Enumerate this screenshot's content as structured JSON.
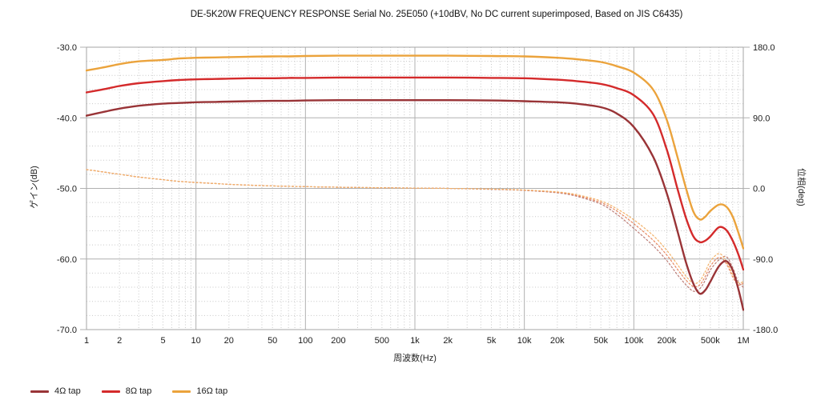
{
  "chart_data": {
    "type": "line",
    "title": "DE-5K20W FREQUENCY RESPONSE Serial No. 25E050 (+10dBV,  No DC current superimposed,  Based on JIS C6435)",
    "xlabel": "周波数(Hz)",
    "ylabel_left": "ゲイン(dB)",
    "ylabel_right": "位相(deg)",
    "x_scale": "log",
    "xlim": [
      1,
      1000000
    ],
    "ylim_left": [
      -70,
      -30
    ],
    "ylim_right": [
      -180,
      180
    ],
    "grid": {
      "major_db_step": 10,
      "minor_db_step": 2,
      "log_minor_divisions": true
    },
    "x_ticks": [
      {
        "label": "1",
        "value": 1
      },
      {
        "label": "2",
        "value": 2
      },
      {
        "label": "5",
        "value": 5
      },
      {
        "label": "10",
        "value": 10
      },
      {
        "label": "20",
        "value": 20
      },
      {
        "label": "50",
        "value": 50
      },
      {
        "label": "100",
        "value": 100
      },
      {
        "label": "200",
        "value": 200
      },
      {
        "label": "500",
        "value": 500
      },
      {
        "label": "1k",
        "value": 1000
      },
      {
        "label": "2k",
        "value": 2000
      },
      {
        "label": "5k",
        "value": 5000
      },
      {
        "label": "10k",
        "value": 10000
      },
      {
        "label": "20k",
        "value": 20000
      },
      {
        "label": "50k",
        "value": 50000
      },
      {
        "label": "100k",
        "value": 100000
      },
      {
        "label": "200k",
        "value": 200000
      },
      {
        "label": "500k",
        "value": 500000
      },
      {
        "label": "1M",
        "value": 1000000
      }
    ],
    "y_ticks_left": [
      {
        "label": "-30.0",
        "value": -30
      },
      {
        "label": "-40.0",
        "value": -40
      },
      {
        "label": "-50.0",
        "value": -50
      },
      {
        "label": "-60.0",
        "value": -60
      },
      {
        "label": "-70.0",
        "value": -70
      }
    ],
    "y_ticks_right": [
      {
        "label": "180.0",
        "value": 180
      },
      {
        "label": "90.0",
        "value": 90
      },
      {
        "label": "0.0",
        "value": 0
      },
      {
        "label": "-90.0",
        "value": -90
      },
      {
        "label": "-180.0",
        "value": -180
      }
    ],
    "frequencies": [
      1,
      1.5,
      2,
      3,
      5,
      7,
      10,
      15,
      20,
      30,
      50,
      70,
      100,
      200,
      500,
      1000,
      2000,
      5000,
      10000,
      20000,
      30000,
      50000,
      70000,
      100000,
      150000,
      200000,
      250000,
      300000,
      350000,
      400000,
      450000,
      500000,
      600000,
      700000,
      800000,
      900000,
      1000000
    ],
    "series": [
      {
        "name": "4Ω tap phase",
        "axis": "right",
        "style": "dashed",
        "color": "#bd7e78",
        "values": [
          24,
          20.5,
          18,
          14.5,
          11,
          9,
          7.5,
          6.2,
          5.2,
          4.2,
          3.2,
          2.7,
          2.2,
          1.5,
          0.8,
          0.4,
          0,
          -1.2,
          -2.6,
          -5.6,
          -10,
          -20,
          -33,
          -51,
          -73,
          -92,
          -110,
          -123,
          -131,
          -128,
          -117,
          -104,
          -91,
          -87,
          -101,
          -119,
          -126
        ]
      },
      {
        "name": "8Ω tap phase",
        "axis": "right",
        "style": "dashed",
        "color": "#e8875f",
        "values": [
          24,
          20.5,
          18,
          14.5,
          11,
          9,
          7.5,
          6.2,
          5.2,
          4.2,
          3.2,
          2.7,
          2.2,
          1.5,
          0.8,
          0.4,
          0,
          -1,
          -2.3,
          -5,
          -9,
          -18,
          -29,
          -45,
          -66,
          -85,
          -103,
          -117,
          -125,
          -123,
          -112,
          -99,
          -88,
          -96,
          -113,
          -123,
          -121
        ]
      },
      {
        "name": "16Ω tap phase",
        "axis": "right",
        "style": "dashed",
        "color": "#f3b269",
        "values": [
          24,
          20.5,
          18,
          14.5,
          11,
          9,
          7.5,
          6.2,
          5.2,
          4.2,
          3.2,
          2.7,
          2.2,
          1.5,
          0.8,
          0.4,
          0,
          -0.8,
          -2,
          -4.5,
          -8,
          -16,
          -26,
          -40,
          -60,
          -79,
          -97,
          -112,
          -121,
          -118,
          -106,
          -93,
          -83,
          -93,
          -110,
          -120,
          -119
        ]
      },
      {
        "name": "4Ω tap",
        "axis": "left",
        "style": "solid",
        "color": "#993437",
        "values": [
          -39.7,
          -39.1,
          -38.7,
          -38.3,
          -38.0,
          -37.9,
          -37.8,
          -37.75,
          -37.7,
          -37.65,
          -37.6,
          -37.6,
          -37.55,
          -37.5,
          -37.5,
          -37.5,
          -37.5,
          -37.55,
          -37.65,
          -37.8,
          -38.0,
          -38.5,
          -39.4,
          -41.3,
          -45.5,
          -50.7,
          -56.0,
          -60.5,
          -63.5,
          -64.9,
          -64.4,
          -63.2,
          -61.0,
          -60.3,
          -61.6,
          -64.2,
          -67.2
        ]
      },
      {
        "name": "8Ω tap",
        "axis": "left",
        "style": "solid",
        "color": "#d42a2b",
        "values": [
          -36.4,
          -35.9,
          -35.5,
          -35.1,
          -34.8,
          -34.65,
          -34.55,
          -34.5,
          -34.45,
          -34.4,
          -34.4,
          -34.35,
          -34.35,
          -34.3,
          -34.3,
          -34.3,
          -34.3,
          -34.35,
          -34.4,
          -34.6,
          -34.8,
          -35.2,
          -35.8,
          -36.8,
          -39.5,
          -44.5,
          -50.0,
          -54.2,
          -56.8,
          -57.6,
          -57.4,
          -56.8,
          -55.5,
          -55.9,
          -57.4,
          -59.3,
          -61.5
        ]
      },
      {
        "name": "16Ω tap",
        "axis": "left",
        "style": "solid",
        "color": "#eba33c",
        "values": [
          -33.3,
          -32.8,
          -32.4,
          -32.0,
          -31.8,
          -31.6,
          -31.5,
          -31.45,
          -31.4,
          -31.35,
          -31.3,
          -31.3,
          -31.25,
          -31.2,
          -31.2,
          -31.2,
          -31.2,
          -31.25,
          -31.3,
          -31.5,
          -31.7,
          -32.1,
          -32.7,
          -33.6,
          -36.0,
          -40.3,
          -45.5,
          -50.0,
          -53.3,
          -54.4,
          -54.0,
          -53.2,
          -52.3,
          -52.6,
          -54.0,
          -56.2,
          -58.5
        ]
      }
    ],
    "legend": [
      {
        "label": "4Ω tap",
        "color": "#993437"
      },
      {
        "label": "8Ω tap",
        "color": "#d42a2b"
      },
      {
        "label": "16Ω tap",
        "color": "#eba33c"
      }
    ],
    "legend_position": "bottom-left",
    "colors": {
      "grid_major": "#b0b0b0",
      "grid_minor": "#c8c8c8",
      "border": "#a6a6a6",
      "tick_text": "#1c1c1c",
      "background": "#ffffff"
    }
  }
}
